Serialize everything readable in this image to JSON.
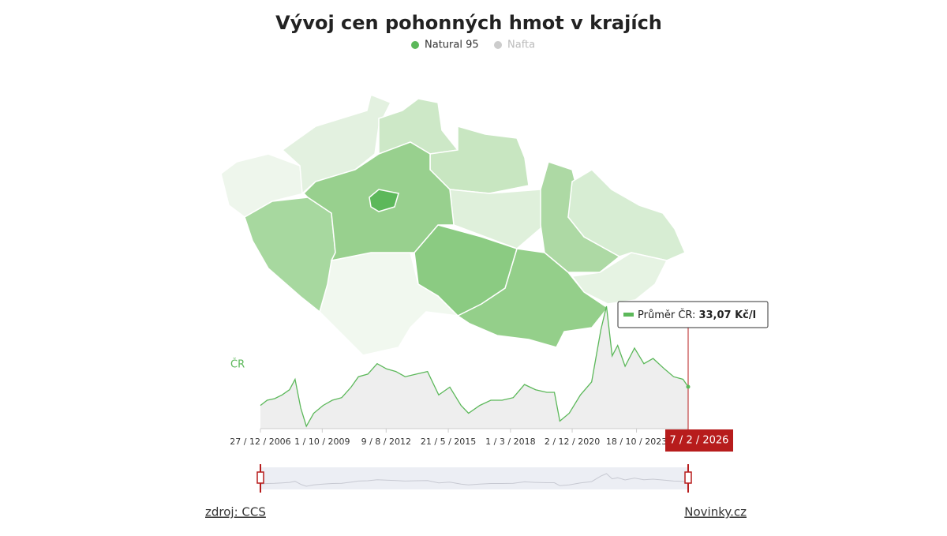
{
  "title": "Vývoj cen pohonných hmot v krajích",
  "legend": [
    {
      "name": "Natural 95",
      "color": "#5cb85a",
      "active": true
    },
    {
      "name": "Nafta",
      "color": "#cccccc",
      "active": false
    }
  ],
  "map_regions": [
    {
      "color": "#eef6ec"
    },
    {
      "color": "#e3f1e0"
    },
    {
      "color": "#cde8c7"
    },
    {
      "color": "#c8e6c1"
    },
    {
      "color": "#dff0db"
    },
    {
      "color": "#add9a4"
    },
    {
      "color": "#d7edd3"
    },
    {
      "color": "#e6f3e3"
    },
    {
      "color": "#94cf8a"
    },
    {
      "color": "#8bcb82"
    },
    {
      "color": "#f1f8ef"
    },
    {
      "color": "#a7d89f"
    },
    {
      "color": "#98d08e"
    },
    {
      "color": "#5cb85a"
    }
  ],
  "chart_data": {
    "type": "line",
    "series_label": "ČR",
    "x": [
      "2006-12-27",
      "2007-04-15",
      "2007-08-15",
      "2007-12-15",
      "2008-04-15",
      "2008-07-15",
      "2008-10-15",
      "2009-01-15",
      "2009-05-15",
      "2009-10-15",
      "2010-03-15",
      "2010-08-15",
      "2011-01-15",
      "2011-05-15",
      "2011-10-15",
      "2012-03-15",
      "2012-08-15",
      "2013-01-15",
      "2013-06-15",
      "2013-12-15",
      "2014-06-15",
      "2014-12-15",
      "2015-06-15",
      "2015-12-15",
      "2016-04-15",
      "2016-10-15",
      "2017-04-15",
      "2017-10-15",
      "2018-04-15",
      "2018-10-15",
      "2019-04-15",
      "2019-10-15",
      "2020-02-15",
      "2020-05-15",
      "2020-10-15",
      "2021-04-15",
      "2021-10-15",
      "2022-03-15",
      "2022-06-15",
      "2022-09-15",
      "2022-12-15",
      "2023-04-15",
      "2023-09-15",
      "2024-02-15",
      "2024-07-15",
      "2025-01-15",
      "2025-06-15",
      "2025-11-15",
      "2026-02-07"
    ],
    "series": [
      {
        "name": "Natural 95",
        "color": "#5cb85a",
        "values": [
          29.5,
          30.5,
          30.8,
          31.5,
          32.5,
          34.5,
          29,
          25.5,
          28,
          29.5,
          30.5,
          31,
          33,
          35,
          35.5,
          37.5,
          36.5,
          36,
          35,
          35.5,
          36,
          31.5,
          33,
          29.5,
          28,
          29.5,
          30.5,
          30.5,
          31,
          33.5,
          32.5,
          32,
          32,
          26.5,
          28,
          31.5,
          34,
          44,
          48.5,
          39,
          41,
          37,
          40.5,
          37.5,
          38.5,
          36.5,
          35,
          34.5,
          33.07
        ]
      }
    ],
    "xticks": [
      {
        "value": "2006-12-27",
        "label": "27 / 12 / 2006"
      },
      {
        "value": "2009-10-01",
        "label": "1 / 10 / 2009"
      },
      {
        "value": "2012-08-09",
        "label": "9 / 8 / 2012"
      },
      {
        "value": "2015-05-21",
        "label": "21 / 5 / 2015"
      },
      {
        "value": "2018-03-01",
        "label": "1 / 3 / 2018"
      },
      {
        "value": "2020-12-02",
        "label": "2 / 12 / 2020"
      },
      {
        "value": "2023-10-18",
        "label": "18 / 10 / 2023"
      }
    ],
    "cursor": {
      "date": "2026-02-07",
      "date_label": "7 / 2 / 2026",
      "label": "Průměr ČR:",
      "value": 33.07,
      "value_label": "33,07 Kč/l",
      "color": "#b71c1c"
    }
  },
  "footer": {
    "source": "zdroj: CCS",
    "publisher": "Novinky.cz"
  }
}
